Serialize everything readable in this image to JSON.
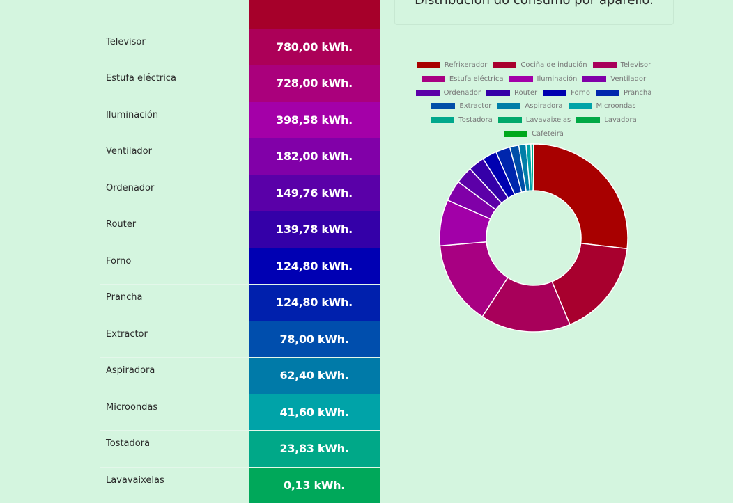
{
  "table": {
    "rows": [
      {
        "name": "",
        "value": "",
        "color": "#a6002a"
      },
      {
        "name": "Televisor",
        "value": "780,00 kWh.",
        "color": "#ac0058"
      },
      {
        "name": "Estufa eléctrica",
        "value": "728,00 kWh.",
        "color": "#aa007c"
      },
      {
        "name": "Iluminación",
        "value": "398,58 kWh.",
        "color": "#a400a8"
      },
      {
        "name": "Ventilador",
        "value": "182,00 kWh.",
        "color": "#8100a8"
      },
      {
        "name": "Ordenador",
        "value": "149,76 kWh.",
        "color": "#5a00a8"
      },
      {
        "name": "Router",
        "value": "139,78 kWh.",
        "color": "#3400a8"
      },
      {
        "name": "Forno",
        "value": "124,80 kWh.",
        "color": "#0000b3"
      },
      {
        "name": "Prancha",
        "value": "124,80 kWh.",
        "color": "#0020ad"
      },
      {
        "name": "Extractor",
        "value": "78,00 kWh.",
        "color": "#004ead"
      },
      {
        "name": "Aspiradora",
        "value": "62,40 kWh.",
        "color": "#007aa8"
      },
      {
        "name": "Microondas",
        "value": "41,60 kWh.",
        "color": "#00a3a8"
      },
      {
        "name": "Tostadora",
        "value": "23,83 kWh.",
        "color": "#00a888"
      },
      {
        "name": "Lavavaixelas",
        "value": "0,13 kWh.",
        "color": "#00a85a"
      }
    ]
  },
  "panel": {
    "title": "Distribución do consumo por aparello."
  },
  "chart_data": {
    "type": "pie",
    "title": "Distribución do consumo por aparello.",
    "legend_position": "top",
    "categories": [
      "Refrixerador",
      "Cociña de indución",
      "Televisor",
      "Estufa eléctrica",
      "Iluminación",
      "Ventilador",
      "Ordenador",
      "Router",
      "Forno",
      "Prancha",
      "Extractor",
      "Aspiradora",
      "Microondas",
      "Tostadora",
      "Lavavaixelas",
      "Lavadora",
      "Cafeteira"
    ],
    "values": [
      1350,
      850,
      780,
      728,
      398.58,
      182,
      149.76,
      139.78,
      124.8,
      124.8,
      78,
      62.4,
      41.6,
      23.83,
      0.13,
      0.1,
      0.1
    ],
    "colors": [
      "#a80000",
      "#a8002e",
      "#a8005a",
      "#a80082",
      "#a200a8",
      "#8000a8",
      "#5c00a8",
      "#3500a8",
      "#0000b0",
      "#0026ad",
      "#004fa8",
      "#007ea8",
      "#00a3a8",
      "#00a88c",
      "#00a86b",
      "#00a845",
      "#00a81c"
    ]
  }
}
